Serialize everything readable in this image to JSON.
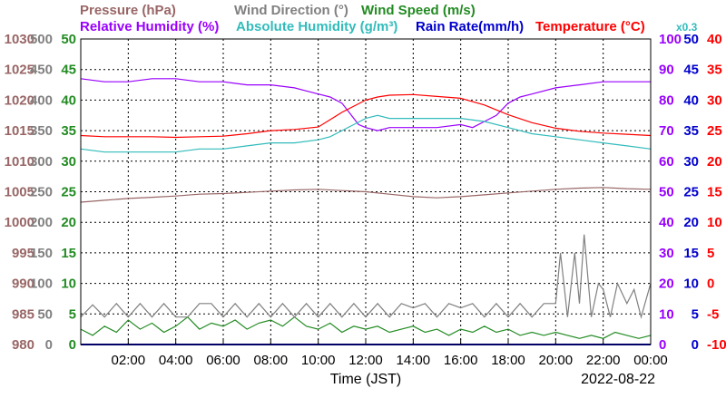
{
  "chart_data": {
    "type": "line",
    "date_label": "2022-08-22",
    "xlabel": "Time (JST)",
    "x_ticks": [
      "02:00",
      "04:00",
      "06:00",
      "08:00",
      "10:00",
      "12:00",
      "14:00",
      "16:00",
      "18:00",
      "20:00",
      "22:00",
      "00:00"
    ],
    "x_range_hours": [
      0,
      24
    ],
    "grid": true,
    "legend": {
      "row1": [
        {
          "key": "pressure",
          "label": "Pressure (hPa)",
          "color": "#996666"
        },
        {
          "key": "wind_dir",
          "label": "Wind Direction (°)",
          "color": "#808080"
        },
        {
          "key": "wind_speed",
          "label": "Wind Speed (m/s)",
          "color": "#228b22"
        }
      ],
      "row2": [
        {
          "key": "rh",
          "label": "Relative Humidity (%)",
          "color": "#9900ff"
        },
        {
          "key": "ah",
          "label": "Absolute Humidity (g/m³)",
          "color": "#33bbbb"
        },
        {
          "key": "rain",
          "label": "Rain Rate(mm/h)",
          "color": "#0000cc"
        },
        {
          "key": "temp",
          "label": "Temperature (°C)",
          "color": "#ff0000"
        },
        {
          "key": "x03",
          "label": "x0.3",
          "color": "#33bbbb"
        }
      ]
    },
    "axes": {
      "pressure": {
        "ticks": [
          "1030",
          "1025",
          "1020",
          "1015",
          "1010",
          "1005",
          "1000",
          "995",
          "990",
          "985",
          "980"
        ],
        "range": [
          980,
          1030
        ],
        "color": "#996666"
      },
      "wind_dir": {
        "ticks": [
          "500",
          "450",
          "400",
          "350",
          "300",
          "250",
          "200",
          "150",
          "100",
          "50",
          "0"
        ],
        "range": [
          0,
          500
        ],
        "color": "#808080"
      },
      "wind_speed": {
        "ticks": [
          "50",
          "45",
          "40",
          "35",
          "30",
          "25",
          "20",
          "15",
          "10",
          "5",
          "0"
        ],
        "range": [
          0,
          50
        ],
        "color": "#228b22"
      },
      "rh": {
        "ticks": [
          "100",
          "90",
          "80",
          "70",
          "60",
          "50",
          "40",
          "30",
          "20",
          "10",
          "0"
        ],
        "range": [
          0,
          100
        ],
        "color": "#9900ff"
      },
      "rain": {
        "ticks": [
          "50",
          "45",
          "40",
          "35",
          "30",
          "25",
          "20",
          "15",
          "10",
          "5",
          "0"
        ],
        "range": [
          0,
          50
        ],
        "color": "#0000cc"
      },
      "temp": {
        "ticks": [
          "40",
          "35",
          "30",
          "25",
          "20",
          "15",
          "10",
          "5",
          "0",
          "-5",
          "-10"
        ],
        "range": [
          -10,
          40
        ],
        "color": "#ff0000"
      }
    },
    "series": [
      {
        "key": "pressure",
        "name": "Pressure (hPa)",
        "color": "#996666",
        "axis": "pressure",
        "x": [
          0,
          1,
          2,
          3,
          4,
          5,
          6,
          7,
          8,
          9,
          10,
          11,
          12,
          13,
          14,
          15,
          16,
          17,
          18,
          19,
          20,
          21,
          22,
          23,
          24
        ],
        "y": [
          1003.3,
          1003.6,
          1003.9,
          1004.1,
          1004.3,
          1004.6,
          1004.7,
          1004.9,
          1005.1,
          1005.3,
          1005.4,
          1005.2,
          1005.0,
          1004.6,
          1004.2,
          1004.0,
          1004.2,
          1004.5,
          1004.8,
          1005.1,
          1005.4,
          1005.6,
          1005.7,
          1005.5,
          1005.4
        ]
      },
      {
        "key": "rh",
        "name": "Relative Humidity (%)",
        "color": "#9900ff",
        "axis": "rh",
        "x": [
          0,
          1,
          2,
          3,
          4,
          5,
          6,
          7,
          8,
          9,
          9.5,
          10,
          10.5,
          11,
          11.3,
          11.7,
          12,
          12.5,
          13,
          14,
          15,
          16,
          16.5,
          17,
          17.5,
          18,
          18.5,
          19,
          20,
          21,
          22,
          23,
          24
        ],
        "y": [
          87,
          86,
          86,
          87,
          87,
          86,
          86,
          85,
          85,
          84,
          83,
          82,
          81,
          79,
          76,
          72,
          71,
          70,
          71,
          71,
          71,
          72,
          71,
          73,
          75,
          79,
          81,
          82,
          84,
          85,
          86,
          86,
          86
        ]
      },
      {
        "key": "ah",
        "name": "Absolute Humidity (g/m³)",
        "color": "#33bbbb",
        "axis": "rh",
        "x": [
          0,
          1,
          2,
          3,
          4,
          5,
          6,
          7,
          8,
          9,
          10,
          10.5,
          11,
          11.5,
          12,
          12.5,
          13,
          14,
          15,
          16,
          17,
          18,
          19,
          20,
          21,
          22,
          23,
          24
        ],
        "y": [
          64,
          63,
          63,
          63,
          63,
          64,
          64,
          65,
          66,
          66,
          67,
          68,
          70,
          72,
          74,
          75,
          74,
          74,
          74,
          74,
          73,
          71,
          69,
          68,
          67,
          66,
          65,
          64
        ]
      },
      {
        "key": "temp",
        "name": "Temperature (°C)",
        "color": "#ff0000",
        "axis": "temp",
        "x": [
          0,
          1,
          2,
          3,
          4,
          5,
          6,
          7,
          8,
          9,
          10,
          10.5,
          11,
          11.5,
          12,
          12.5,
          13,
          14,
          15,
          16,
          17,
          18,
          19,
          20,
          21,
          22,
          23,
          24
        ],
        "y": [
          24.2,
          24.0,
          24.0,
          24.0,
          23.9,
          24.0,
          24.1,
          24.5,
          25.0,
          25.2,
          25.6,
          26.8,
          28.0,
          29.0,
          30.0,
          30.5,
          30.8,
          30.9,
          30.6,
          30.3,
          29.2,
          27.6,
          26.3,
          25.4,
          24.9,
          24.6,
          24.4,
          24.2
        ]
      },
      {
        "key": "wind_dir",
        "name": "Wind Direction (°)",
        "color": "#808080",
        "axis": "wind_dir",
        "x": [
          0,
          0.5,
          1,
          1.5,
          2,
          2.5,
          3,
          3.5,
          4,
          4.5,
          5,
          5.5,
          6,
          6.5,
          7,
          7.5,
          8,
          8.5,
          9,
          9.5,
          10,
          10.5,
          11,
          11.5,
          12,
          12.5,
          13,
          13.5,
          14,
          14.5,
          15,
          15.5,
          16,
          16.5,
          17,
          17.5,
          18,
          18.5,
          19,
          19.5,
          20,
          20.2,
          20.5,
          20.8,
          21,
          21.2,
          21.5,
          21.8,
          22,
          22.3,
          22.6,
          23,
          23.3,
          23.6,
          24
        ],
        "y": [
          45,
          65,
          45,
          67,
          45,
          67,
          45,
          67,
          45,
          45,
          67,
          67,
          45,
          67,
          45,
          67,
          45,
          67,
          45,
          67,
          45,
          67,
          45,
          67,
          45,
          67,
          45,
          67,
          60,
          67,
          45,
          67,
          60,
          67,
          45,
          67,
          45,
          67,
          45,
          67,
          67,
          150,
          45,
          150,
          67,
          180,
          45,
          100,
          90,
          45,
          100,
          67,
          90,
          45,
          100
        ]
      },
      {
        "key": "wind_speed",
        "name": "Wind Speed (m/s)",
        "color": "#228b22",
        "axis": "wind_speed",
        "x": [
          0,
          0.5,
          1,
          1.5,
          2,
          2.5,
          3,
          3.5,
          4,
          4.5,
          5,
          5.5,
          6,
          6.5,
          7,
          7.5,
          8,
          8.5,
          9,
          9.5,
          10,
          10.5,
          11,
          11.5,
          12,
          12.5,
          13,
          13.5,
          14,
          14.5,
          15,
          15.5,
          16,
          16.5,
          17,
          17.5,
          18,
          18.5,
          19,
          19.5,
          20,
          20.5,
          21,
          21.5,
          22,
          22.5,
          23,
          23.5,
          24
        ],
        "y": [
          2.5,
          1.5,
          3.0,
          2.0,
          4.0,
          2.5,
          3.5,
          2.0,
          3.0,
          4.5,
          2.5,
          3.5,
          3.0,
          4.0,
          2.5,
          3.5,
          4.0,
          3.0,
          4.5,
          3.0,
          2.5,
          3.5,
          2.0,
          3.0,
          2.5,
          3.0,
          2.0,
          2.5,
          3.0,
          2.0,
          2.5,
          1.5,
          2.5,
          2.0,
          3.0,
          2.0,
          2.5,
          1.5,
          2.0,
          1.5,
          2.0,
          1.5,
          1.0,
          1.5,
          1.0,
          2.0,
          1.5,
          1.0,
          1.5
        ]
      },
      {
        "key": "rain",
        "name": "Rain Rate(mm/h)",
        "color": "#0000cc",
        "axis": "rain",
        "x": [
          0,
          24
        ],
        "y": [
          0,
          0
        ]
      }
    ]
  }
}
